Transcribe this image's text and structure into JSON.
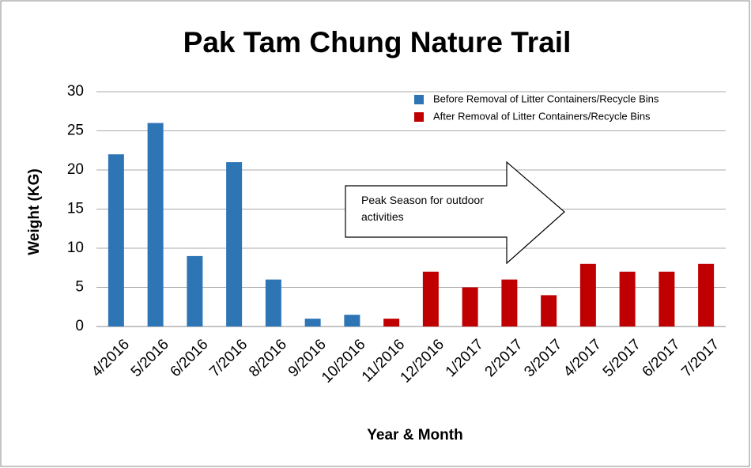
{
  "chart_data": {
    "type": "bar",
    "title": "Pak Tam Chung Nature Trail",
    "x_label": "Year & Month",
    "y_label": "Weight (KG)",
    "annotation": "Peak Season for outdoor activities",
    "categories": [
      "4/2016",
      "5/2016",
      "6/2016",
      "7/2016",
      "8/2016",
      "9/2016",
      "10/2016",
      "11/2016",
      "12/2016",
      "1/2017",
      "2/2017",
      "3/2017",
      "4/2017",
      "5/2017",
      "6/2017",
      "7/2017"
    ],
    "series": [
      {
        "name": "Before Removal of Litter Containers/Recycle Bins",
        "color": "#2e75b6",
        "values": [
          22,
          26,
          9,
          21,
          6,
          1,
          1.5,
          null,
          null,
          null,
          null,
          null,
          null,
          null,
          null,
          null
        ]
      },
      {
        "name": "After Removal of Litter Containers/Recycle Bins",
        "color": "#c00000",
        "values": [
          null,
          null,
          null,
          null,
          null,
          null,
          null,
          1,
          7,
          5,
          6,
          4,
          8,
          7,
          7,
          8
        ]
      }
    ],
    "ylim": [
      0,
      30
    ],
    "yticks": [
      0,
      5,
      10,
      15,
      20,
      25,
      30
    ],
    "grid": true,
    "legend": "top-right"
  }
}
